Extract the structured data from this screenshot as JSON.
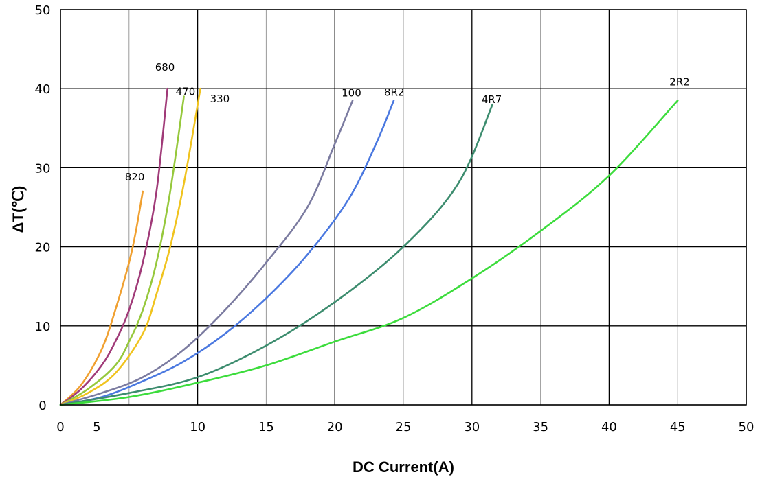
{
  "chart_data": {
    "type": "line",
    "title": "",
    "xlabel": "DC Current(A)",
    "ylabel": "ΔT(℃)",
    "xlim": [
      0,
      50
    ],
    "ylim": [
      0,
      50
    ],
    "x_ticks": [
      "0",
      "5",
      "10",
      "15",
      "20",
      "25",
      "30",
      "35",
      "40",
      "45",
      "50"
    ],
    "y_ticks": [
      "0",
      "10",
      "20",
      "30",
      "40",
      "50"
    ],
    "grid": true,
    "series": [
      {
        "name": "820",
        "color": "#f0a030",
        "x": [
          0,
          1.5,
          3,
          4,
          5,
          5.5,
          6
        ],
        "y": [
          0,
          2.5,
          7,
          12,
          18,
          22,
          27
        ]
      },
      {
        "name": "680",
        "color": "#a03a78",
        "x": [
          0,
          1.5,
          3,
          4,
          5,
          6,
          7,
          7.8
        ],
        "y": [
          0,
          2,
          5,
          8,
          12,
          18,
          27,
          40
        ]
      },
      {
        "name": "470",
        "color": "#96c83c",
        "x": [
          0,
          2,
          4,
          5,
          6,
          7,
          8,
          9
        ],
        "y": [
          0,
          2,
          5,
          8,
          12,
          18,
          27,
          39
        ]
      },
      {
        "name": "330",
        "color": "#f0c31e",
        "x": [
          0,
          2,
          4,
          6,
          7,
          8,
          9,
          10.2
        ],
        "y": [
          0,
          1.5,
          4,
          9,
          14,
          20,
          28,
          40
        ]
      },
      {
        "name": "100",
        "color": "#7b7ba0",
        "x": [
          0,
          3,
          6,
          9,
          12,
          15,
          18,
          20,
          21.3
        ],
        "y": [
          0,
          1.5,
          3.5,
          7,
          12,
          18,
          25,
          33,
          38.5
        ]
      },
      {
        "name": "8R2",
        "color": "#4a78e0",
        "x": [
          0,
          3,
          6,
          9,
          12,
          15,
          18,
          21,
          23,
          24.3
        ],
        "y": [
          0,
          1,
          3,
          5.5,
          9,
          13.5,
          19,
          26,
          33,
          38.5
        ]
      },
      {
        "name": "4R7",
        "color": "#3c8c6e",
        "x": [
          0,
          5,
          10,
          15,
          20,
          25,
          29,
          31.5
        ],
        "y": [
          0,
          1.5,
          3.5,
          7.5,
          13,
          20,
          28,
          38
        ]
      },
      {
        "name": "2R2",
        "color": "#3cdc3c",
        "x": [
          0,
          5,
          10,
          15,
          20,
          25,
          30,
          35,
          40,
          45
        ],
        "y": [
          0,
          1,
          2.8,
          5,
          8,
          11,
          16,
          22,
          29,
          38.5
        ]
      }
    ]
  }
}
